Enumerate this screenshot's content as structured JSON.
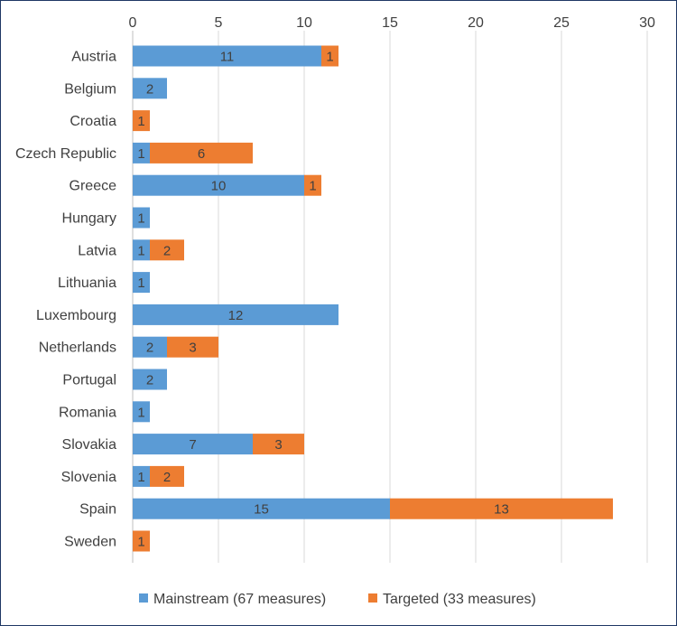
{
  "chart_data": {
    "type": "bar",
    "orientation": "horizontal",
    "stacked": true,
    "title": "",
    "xlabel": "",
    "ylabel": "",
    "xlim": [
      0,
      30
    ],
    "x_ticks": [
      0,
      5,
      10,
      15,
      20,
      25,
      30
    ],
    "x_axis_position": "top",
    "grid": true,
    "legend_position": "bottom",
    "categories": [
      "Austria",
      "Belgium",
      "Croatia",
      "Czech Republic",
      "Greece",
      "Hungary",
      "Latvia",
      "Lithuania",
      "Luxembourg",
      "Netherlands",
      "Portugal",
      "Romania",
      "Slovakia",
      "Slovenia",
      "Spain",
      "Sweden"
    ],
    "series": [
      {
        "name": "Mainstream (67 measures)",
        "color": "#5b9bd5",
        "values": [
          11,
          2,
          0,
          1,
          10,
          1,
          1,
          1,
          12,
          2,
          2,
          1,
          7,
          1,
          15,
          0
        ]
      },
      {
        "name": "Targeted (33 measures)",
        "color": "#ed7d31",
        "values": [
          1,
          0,
          1,
          6,
          1,
          0,
          2,
          0,
          0,
          3,
          0,
          0,
          3,
          2,
          13,
          1
        ]
      }
    ]
  }
}
